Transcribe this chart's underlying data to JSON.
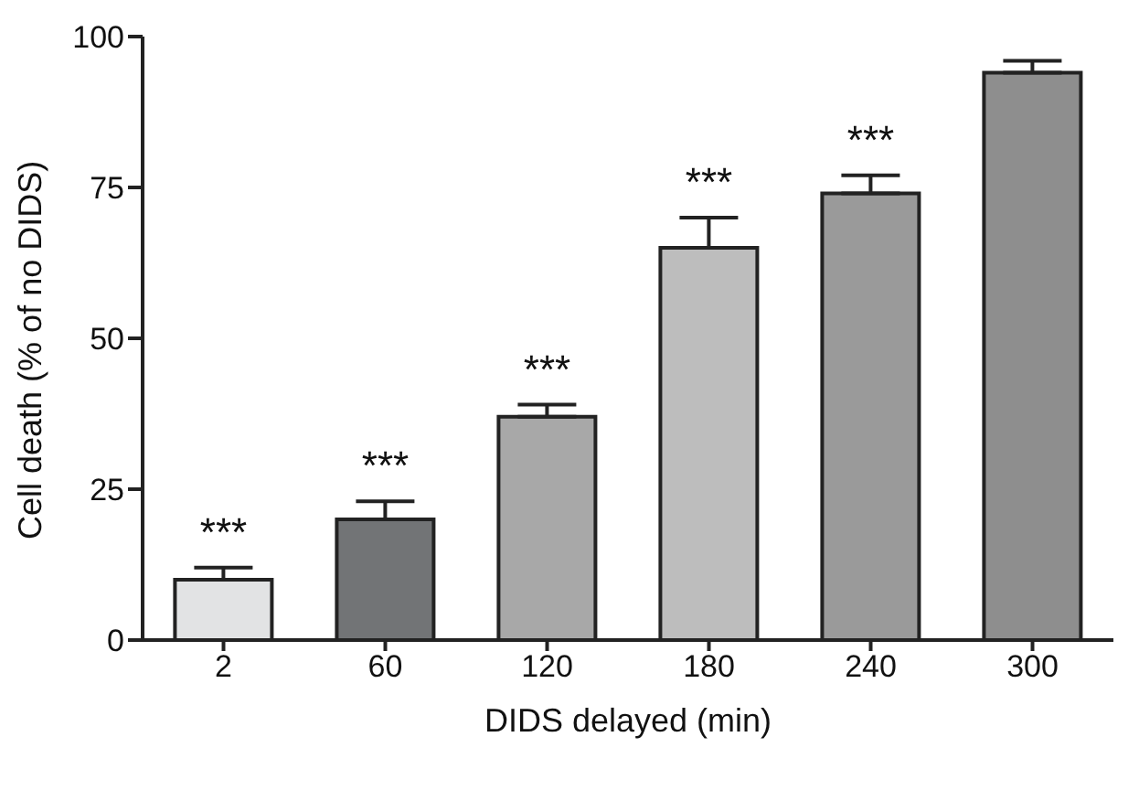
{
  "chart_data": {
    "type": "bar",
    "xlabel": "DIDS delayed (min)",
    "ylabel": "Cell death (% of no DIDS)",
    "categories": [
      "2",
      "60",
      "120",
      "180",
      "240",
      "300"
    ],
    "values": [
      10,
      20,
      37,
      65,
      74,
      94
    ],
    "errors": [
      [
        10,
        12
      ],
      [
        20,
        23
      ],
      [
        37,
        39
      ],
      [
        65,
        70
      ],
      [
        74,
        77
      ],
      [
        94,
        96
      ]
    ],
    "colors": [
      "#e2e3e4",
      "#727476",
      "#a8a8a8",
      "#bdbdbd",
      "#9a9a9a",
      "#8e8e8e"
    ],
    "ylim": [
      0,
      100
    ],
    "yticks": [
      0,
      25,
      50,
      75,
      100
    ],
    "grid": false,
    "annotations": [
      "***",
      "***",
      "***",
      "***",
      "***"
    ]
  }
}
